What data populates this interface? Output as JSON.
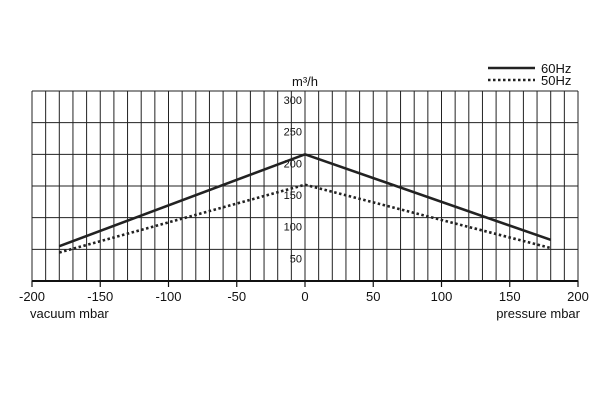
{
  "chart_data": {
    "type": "line",
    "unit_top": "m³/h",
    "x_label_left": "vacuum mbar",
    "x_label_right": "pressure  mbar",
    "xlim": [
      -200,
      200
    ],
    "ylim": [
      0,
      300
    ],
    "x_ticks": [
      -200,
      -150,
      -100,
      -50,
      0,
      50,
      100,
      150,
      200
    ],
    "y_ticks": [
      50,
      100,
      150,
      200,
      250,
      300
    ],
    "legend_position": "top-right",
    "grid": true,
    "series": [
      {
        "name": "60Hz",
        "style": "solid",
        "color": "#222222",
        "x": [
          -180,
          0,
          180
        ],
        "y": [
          55,
          200,
          65
        ]
      },
      {
        "name": "50Hz",
        "style": "dotted",
        "color": "#222222",
        "x": [
          -180,
          0,
          180
        ],
        "y": [
          45,
          152,
          52
        ]
      }
    ]
  }
}
